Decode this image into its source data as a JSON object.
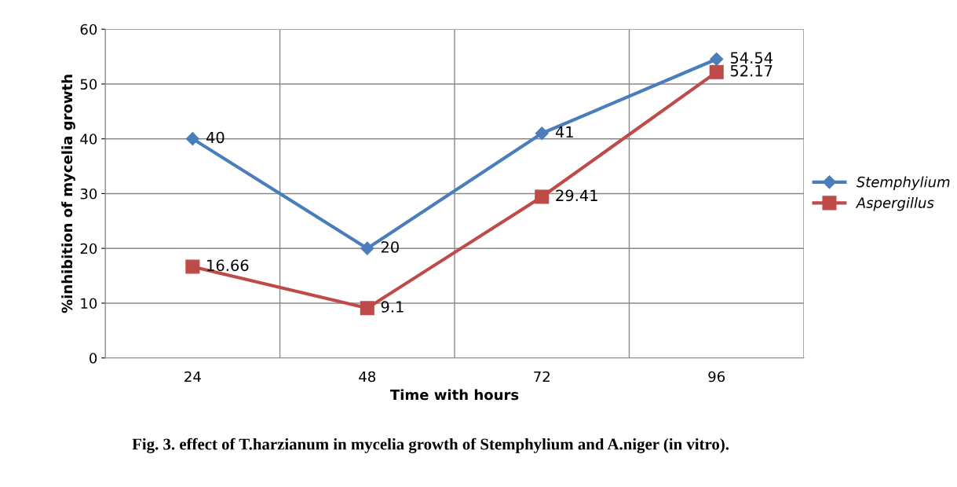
{
  "chart_data": {
    "type": "line",
    "xlabel": "Time with hours",
    "ylabel": "%inhibition of mycelia growth",
    "categories": [
      "24",
      "48",
      "72",
      "96"
    ],
    "series": [
      {
        "name": "Stemphylium",
        "color": "#4a7ebb",
        "marker": "diamond",
        "values": [
          40,
          20,
          41,
          54.54
        ]
      },
      {
        "name": "Aspergillus",
        "color": "#be4b48",
        "marker": "square",
        "values": [
          16.66,
          9.1,
          29.41,
          52.17
        ]
      }
    ],
    "ylim": [
      0,
      60
    ],
    "yticks": [
      0,
      10,
      20,
      30,
      40,
      50,
      60
    ],
    "grid": true,
    "legend": "right",
    "data_labels": true,
    "annotations": [
      "Fig. 3. effect of T.harzianum in mycelia growth of Stemphylium and A.niger (in vitro)."
    ]
  }
}
